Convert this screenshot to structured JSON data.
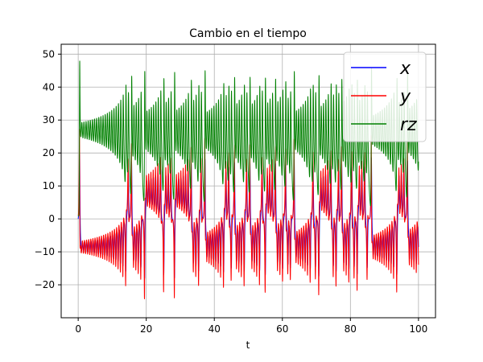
{
  "chart_data": {
    "type": "line",
    "title": "Cambio en el tiempo",
    "xlabel": "t",
    "ylabel": "",
    "xlim": [
      -5,
      105
    ],
    "ylim": [
      -30,
      53
    ],
    "xticks": [
      0,
      20,
      40,
      60,
      80,
      100
    ],
    "yticks": [
      -20,
      -10,
      0,
      10,
      20,
      30,
      40,
      50
    ],
    "xtick_labels": [
      "0",
      "20",
      "40",
      "60",
      "80",
      "100"
    ],
    "ytick_labels": [
      "−20",
      "−10",
      "0",
      "10",
      "20",
      "30",
      "40",
      "50"
    ],
    "grid": true,
    "legend_position": "top-right",
    "t_range": [
      0,
      100
    ],
    "series": [
      {
        "name": "x",
        "color": "#0000ff",
        "min": -22,
        "max": 20
      },
      {
        "name": "y",
        "color": "#ff0000",
        "min": -26,
        "max": 28
      },
      {
        "name": "rz",
        "color": "#008000",
        "min": 3,
        "max": 48
      }
    ]
  }
}
